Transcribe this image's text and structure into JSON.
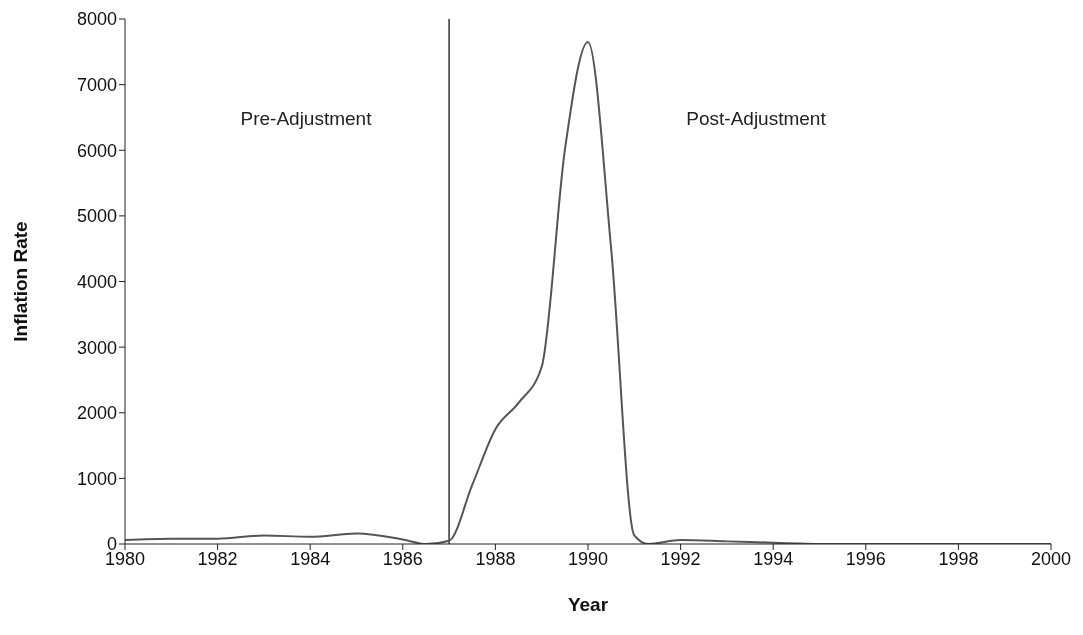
{
  "chart_data": {
    "type": "line",
    "xlabel": "Year",
    "ylabel": "Inflation Rate",
    "x": [
      1980,
      1981,
      1982,
      1983,
      1984,
      1985,
      1986,
      1986.5,
      1987,
      1987.5,
      1988,
      1988.5,
      1989,
      1989.5,
      1990,
      1990.5,
      1991,
      1991.3,
      1992,
      1993,
      1994,
      1995,
      1996,
      1997,
      1998,
      1999,
      2000
    ],
    "series": [
      {
        "color": "#555555",
        "values": [
          60,
          80,
          80,
          130,
          110,
          160,
          70,
          0,
          50,
          900,
          1750,
          2150,
          2700,
          6000,
          7650,
          4500,
          130,
          0,
          60,
          40,
          20,
          0,
          0,
          0,
          0,
          0,
          0
        ]
      }
    ],
    "xlim": [
      1980,
      2000
    ],
    "xticks": [
      1980,
      1982,
      1984,
      1986,
      1988,
      1990,
      1992,
      1994,
      1996,
      1998,
      2000
    ],
    "ylim": [
      0,
      8000
    ],
    "yticks": [
      0,
      1000,
      2000,
      3000,
      4000,
      5000,
      6000,
      7000,
      8000
    ],
    "grid": false,
    "legend": false,
    "marker": "none",
    "line_style": "solid",
    "ref_lines": [
      {
        "axis": "x",
        "value": 1987,
        "color": "#333333"
      }
    ],
    "annotations": [
      "Pre-Adjustment",
      "Post-Adjustment"
    ]
  }
}
